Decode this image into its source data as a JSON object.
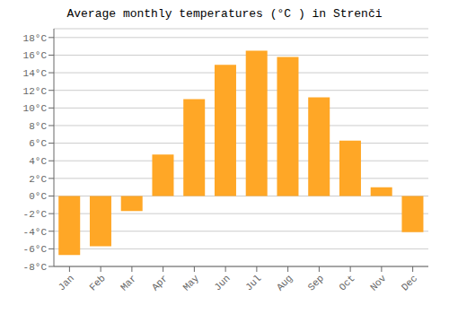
{
  "chart_data": {
    "type": "bar",
    "title": "Average monthly temperatures (°C ) in Strenči",
    "categories": [
      "Jan",
      "Feb",
      "Mar",
      "Apr",
      "May",
      "Jun",
      "Jul",
      "Aug",
      "Sep",
      "Oct",
      "Nov",
      "Dec"
    ],
    "values": [
      -6.7,
      -5.7,
      -1.7,
      4.7,
      11.0,
      14.9,
      16.5,
      15.8,
      11.2,
      6.3,
      1.0,
      -4.1
    ],
    "color": "#FFA726",
    "ylim": [
      -8,
      19
    ],
    "yticks": [
      {
        "value": -8,
        "label": "-8°C"
      },
      {
        "value": -6,
        "label": "-6°C"
      },
      {
        "value": -4,
        "label": "-4°C"
      },
      {
        "value": -2,
        "label": "-2°C"
      },
      {
        "value": 0,
        "label": "0°C"
      },
      {
        "value": 2,
        "label": "2°C"
      },
      {
        "value": 4,
        "label": "4°C"
      },
      {
        "value": 6,
        "label": "6°C"
      },
      {
        "value": 8,
        "label": "8°C"
      },
      {
        "value": 10,
        "label": "10°C"
      },
      {
        "value": 12,
        "label": "12°C"
      },
      {
        "value": 14,
        "label": "14°C"
      },
      {
        "value": 16,
        "label": "16°C"
      },
      {
        "value": 18,
        "label": "18°C"
      }
    ],
    "grid": true
  }
}
